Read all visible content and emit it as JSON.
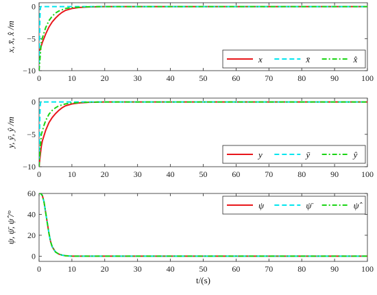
{
  "chart_data": [
    {
      "type": "line",
      "ylabel": "x, x̄, x̂ /m",
      "xlim": [
        0,
        100
      ],
      "ylim": [
        -10,
        0.6
      ],
      "xticks": [
        "0",
        "10",
        "20",
        "30",
        "40",
        "50",
        "60",
        "70",
        "80",
        "90",
        "100"
      ],
      "yticks": [
        "0",
        "-5",
        "-10"
      ],
      "grid": false,
      "legend": "bottom-right",
      "series": [
        {
          "name": "x",
          "color": "#e8161b",
          "dash": "solid",
          "x": [
            0,
            0.5,
            1,
            2,
            3,
            4,
            5,
            6,
            7,
            8,
            10,
            12,
            15,
            20,
            30,
            50,
            100
          ],
          "y": [
            -7.2,
            -6.4,
            -5.6,
            -4.3,
            -3.2,
            -2.4,
            -1.8,
            -1.3,
            -0.9,
            -0.6,
            -0.3,
            -0.15,
            -0.05,
            0,
            0,
            0,
            0
          ]
        },
        {
          "name": "x̄",
          "color": "#00e5ee",
          "dash": "dashed",
          "x": [
            0,
            0.12,
            0.25,
            0.35,
            0.5,
            1,
            2,
            100
          ],
          "y": [
            -10,
            -6,
            -2,
            -0.5,
            0,
            0,
            0,
            0
          ]
        },
        {
          "name": "x̂",
          "color": "#19d413",
          "dash": "dashdot",
          "x": [
            0,
            0.3,
            0.7,
            1,
            2,
            3,
            4,
            5,
            6,
            8,
            10,
            15,
            20,
            30,
            50,
            100
          ],
          "y": [
            -10,
            -8,
            -5.5,
            -4.9,
            -3.3,
            -2.2,
            -1.5,
            -1.0,
            -0.7,
            -0.3,
            -0.15,
            -0.03,
            0,
            0,
            0,
            0
          ]
        }
      ]
    },
    {
      "type": "line",
      "ylabel": "y, ȳ, ŷ /m",
      "xlim": [
        0,
        100
      ],
      "ylim": [
        -10,
        0.6
      ],
      "xticks": [
        "0",
        "10",
        "20",
        "30",
        "40",
        "50",
        "60",
        "70",
        "80",
        "90",
        "100"
      ],
      "yticks": [
        "0",
        "-5",
        "-10"
      ],
      "grid": false,
      "legend": "bottom-right",
      "series": [
        {
          "name": "y",
          "color": "#e8161b",
          "dash": "solid",
          "x": [
            0,
            0.3,
            0.7,
            1,
            2,
            3,
            4,
            5,
            6,
            7,
            8,
            10,
            12,
            15,
            20,
            30,
            50,
            100
          ],
          "y": [
            -10,
            -8.5,
            -6.8,
            -6.0,
            -4.4,
            -3.2,
            -2.4,
            -1.8,
            -1.3,
            -0.9,
            -0.6,
            -0.3,
            -0.15,
            -0.05,
            0,
            0,
            0,
            0
          ]
        },
        {
          "name": "ȳ",
          "color": "#00e5ee",
          "dash": "dashed",
          "x": [
            0,
            0.12,
            0.25,
            0.35,
            0.5,
            1,
            2,
            100
          ],
          "y": [
            -10,
            -6,
            -2,
            -0.5,
            0,
            0,
            0,
            0
          ]
        },
        {
          "name": "ŷ",
          "color": "#19d413",
          "dash": "dashdot",
          "x": [
            0,
            0.3,
            0.7,
            1,
            1.5,
            2,
            3,
            4,
            5,
            6,
            8,
            10,
            15,
            20,
            30,
            50,
            100
          ],
          "y": [
            -10,
            -7.5,
            -5.0,
            -4.5,
            -3.6,
            -2.9,
            -1.9,
            -1.3,
            -0.9,
            -0.6,
            -0.3,
            -0.15,
            -0.03,
            0,
            0,
            0,
            0
          ]
        }
      ]
    },
    {
      "type": "line",
      "ylabel": "ψ, ψ̄, ψ̂ /°",
      "xlabel": "t/(s)",
      "xlim": [
        0,
        100
      ],
      "ylim": [
        -5,
        60
      ],
      "xticks": [
        "0",
        "10",
        "20",
        "30",
        "40",
        "50",
        "60",
        "70",
        "80",
        "90",
        "100"
      ],
      "yticks": [
        "60",
        "40",
        "20",
        "0"
      ],
      "grid": false,
      "legend": "top-right",
      "series": [
        {
          "name": "ψ",
          "color": "#e8161b",
          "dash": "solid",
          "x": [
            0,
            0.5,
            1,
            1.5,
            2,
            2.5,
            3,
            3.5,
            4,
            5,
            6,
            7,
            8,
            10,
            15,
            100
          ],
          "y": [
            60,
            60,
            58,
            52,
            42,
            32,
            22,
            14,
            9,
            4,
            2,
            1,
            0.4,
            0,
            0,
            0
          ]
        },
        {
          "name": "ψ̄",
          "color": "#00e5ee",
          "dash": "dashed",
          "x": [
            0,
            0.5,
            1,
            1.5,
            2,
            2.5,
            3,
            3.5,
            4,
            5,
            6,
            7,
            8,
            10,
            15,
            100
          ],
          "y": [
            60,
            60,
            58,
            52,
            42,
            32,
            22,
            14,
            9,
            4,
            2,
            1,
            0.4,
            0,
            0,
            0
          ]
        },
        {
          "name": "ψ̂",
          "color": "#19d413",
          "dash": "dashdot",
          "x": [
            0,
            0.5,
            1,
            1.5,
            2,
            2.5,
            3,
            3.5,
            4,
            5,
            6,
            7,
            8,
            10,
            15,
            100
          ],
          "y": [
            60,
            60,
            58,
            52,
            42,
            32,
            22,
            14,
            9,
            4,
            2,
            1,
            0.4,
            0,
            0,
            0
          ]
        }
      ]
    }
  ]
}
